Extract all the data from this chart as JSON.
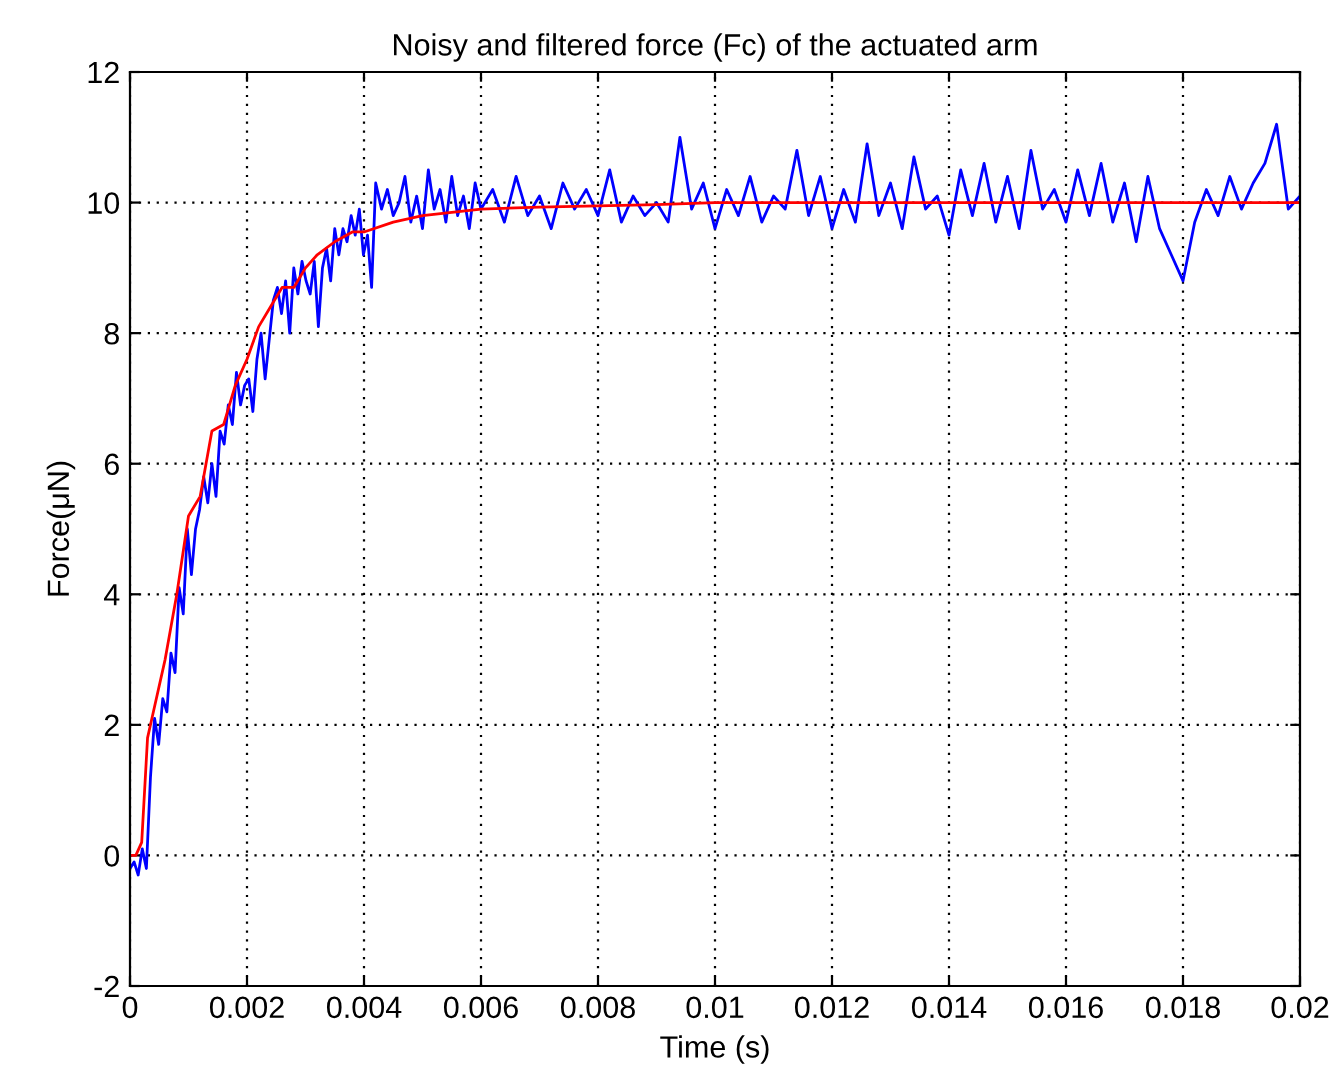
{
  "chart_data": {
    "type": "line",
    "title": "Noisy and filtered force (Fc) of the actuated arm",
    "xlabel": "Time (s)",
    "ylabel": "Force(μN)",
    "xlim": [
      0,
      0.02
    ],
    "xticks": [
      0,
      0.002,
      0.004,
      0.006,
      0.008,
      0.01,
      0.012,
      0.014,
      0.016,
      0.018,
      0.02
    ],
    "ylim": [
      -2,
      12
    ],
    "yticks": [
      -2,
      0,
      2,
      4,
      6,
      8,
      10,
      12
    ],
    "grid": true,
    "marker": "none",
    "line_style": "solid",
    "series": [
      {
        "color": "#0000ff",
        "x": [
          0,
          7e-05,
          0.00014,
          0.00021,
          0.00028,
          0.00035,
          0.00042,
          0.00049,
          0.00056,
          0.00063,
          0.0007,
          0.00077,
          0.00084,
          0.00091,
          0.00098,
          0.00105,
          0.00112,
          0.00119,
          0.00126,
          0.00133,
          0.0014,
          0.00147,
          0.00154,
          0.00161,
          0.00168,
          0.00175,
          0.00182,
          0.00189,
          0.00196,
          0.00203,
          0.0021,
          0.00217,
          0.00224,
          0.00231,
          0.00238,
          0.00245,
          0.00252,
          0.00259,
          0.00266,
          0.00273,
          0.0028,
          0.00287,
          0.00294,
          0.00301,
          0.00308,
          0.00315,
          0.00322,
          0.00329,
          0.00336,
          0.00343,
          0.0035,
          0.00357,
          0.00364,
          0.00371,
          0.00378,
          0.00385,
          0.00392,
          0.00399,
          0.00406,
          0.00413,
          0.0042,
          0.0043,
          0.0044,
          0.0045,
          0.0046,
          0.0047,
          0.0048,
          0.0049,
          0.005,
          0.0051,
          0.0052,
          0.0053,
          0.0054,
          0.0055,
          0.0056,
          0.0057,
          0.0058,
          0.0059,
          0.006,
          0.0062,
          0.0064,
          0.0066,
          0.0068,
          0.007,
          0.0072,
          0.0074,
          0.0076,
          0.0078,
          0.008,
          0.0082,
          0.0084,
          0.0086,
          0.0088,
          0.009,
          0.0092,
          0.0094,
          0.0096,
          0.0098,
          0.01,
          0.0102,
          0.0104,
          0.0106,
          0.0108,
          0.011,
          0.0112,
          0.0114,
          0.0116,
          0.0118,
          0.012,
          0.0122,
          0.0124,
          0.0126,
          0.0128,
          0.013,
          0.0132,
          0.0134,
          0.0136,
          0.0138,
          0.014,
          0.0142,
          0.0144,
          0.0146,
          0.0148,
          0.015,
          0.0152,
          0.0154,
          0.0156,
          0.0158,
          0.016,
          0.0162,
          0.0164,
          0.0166,
          0.0168,
          0.017,
          0.0172,
          0.0174,
          0.0176,
          0.0178,
          0.018,
          0.0182,
          0.0184,
          0.0186,
          0.0188,
          0.019,
          0.0192,
          0.0194,
          0.0196,
          0.0198,
          0.02
        ],
        "values": [
          -0.2,
          -0.1,
          -0.3,
          0.1,
          -0.2,
          1.2,
          2.1,
          1.7,
          2.4,
          2.2,
          3.1,
          2.8,
          4.1,
          3.7,
          5.0,
          4.3,
          5.0,
          5.3,
          5.8,
          5.4,
          6.0,
          5.5,
          6.5,
          6.3,
          6.9,
          6.6,
          7.4,
          6.9,
          7.2,
          7.3,
          6.8,
          7.6,
          8.0,
          7.3,
          7.9,
          8.5,
          8.7,
          8.3,
          8.8,
          8.0,
          9.0,
          8.6,
          9.1,
          8.8,
          8.6,
          9.1,
          8.1,
          9.0,
          9.3,
          8.8,
          9.6,
          9.2,
          9.6,
          9.4,
          9.8,
          9.5,
          9.9,
          9.2,
          9.5,
          8.7,
          10.3,
          9.9,
          10.2,
          9.8,
          10.0,
          10.4,
          9.7,
          10.1,
          9.6,
          10.5,
          9.9,
          10.2,
          9.7,
          10.4,
          9.8,
          10.1,
          9.6,
          10.3,
          9.9,
          10.2,
          9.7,
          10.4,
          9.8,
          10.1,
          9.6,
          10.3,
          9.9,
          10.2,
          9.8,
          10.5,
          9.7,
          10.1,
          9.8,
          10.0,
          9.7,
          11.0,
          9.9,
          10.3,
          9.6,
          10.2,
          9.8,
          10.4,
          9.7,
          10.1,
          9.9,
          10.8,
          9.8,
          10.4,
          9.6,
          10.2,
          9.7,
          10.9,
          9.8,
          10.3,
          9.6,
          10.7,
          9.9,
          10.1,
          9.5,
          10.5,
          9.8,
          10.6,
          9.7,
          10.4,
          9.6,
          10.8,
          9.9,
          10.2,
          9.7,
          10.5,
          9.8,
          10.6,
          9.7,
          10.3,
          9.4,
          10.4,
          9.6,
          9.2,
          8.8,
          9.7,
          10.2,
          9.8,
          10.4,
          9.9,
          10.3,
          10.6,
          11.2,
          9.9,
          10.1
        ]
      },
      {
        "color": "#ff0000",
        "x": [
          0,
          0.0001,
          0.0002,
          0.0003,
          0.0004,
          0.0006,
          0.0008,
          0.001,
          0.0012,
          0.0014,
          0.0016,
          0.0018,
          0.002,
          0.0022,
          0.0024,
          0.0026,
          0.0028,
          0.003,
          0.0032,
          0.0035,
          0.0038,
          0.004,
          0.0045,
          0.005,
          0.0055,
          0.006,
          0.007,
          0.008,
          0.009,
          0.01,
          0.02
        ],
        "values": [
          0,
          0,
          0.2,
          1.8,
          2.2,
          3.0,
          4.0,
          5.2,
          5.5,
          6.5,
          6.6,
          7.2,
          7.6,
          8.1,
          8.4,
          8.7,
          8.7,
          9.0,
          9.2,
          9.4,
          9.55,
          9.55,
          9.7,
          9.8,
          9.85,
          9.9,
          9.93,
          9.95,
          9.97,
          10.0,
          10.0
        ]
      }
    ]
  }
}
